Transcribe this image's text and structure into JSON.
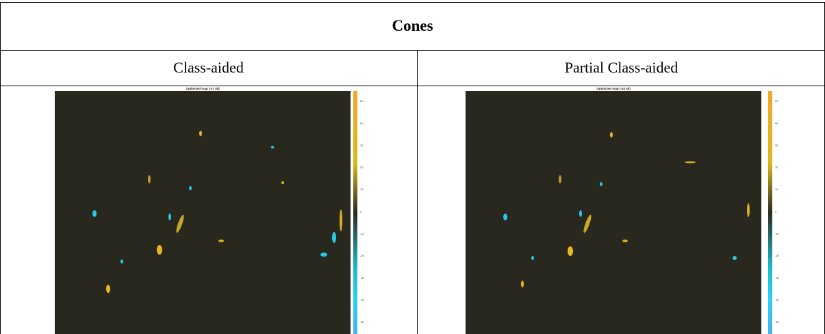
{
  "table": {
    "title": "Cones",
    "columns": [
      "Class-aided",
      "Partial Class-aided"
    ],
    "panels": [
      {
        "title": "Optimized map [-47 48]",
        "ticks": [
          50,
          40,
          30,
          20,
          10,
          0,
          -10,
          -20,
          -30,
          -40,
          -50
        ]
      },
      {
        "title": "Optimized map [-44 45]",
        "ticks": [
          50,
          40,
          30,
          20,
          10,
          0,
          -10,
          -20,
          -30,
          -40,
          -50
        ]
      }
    ]
  }
}
